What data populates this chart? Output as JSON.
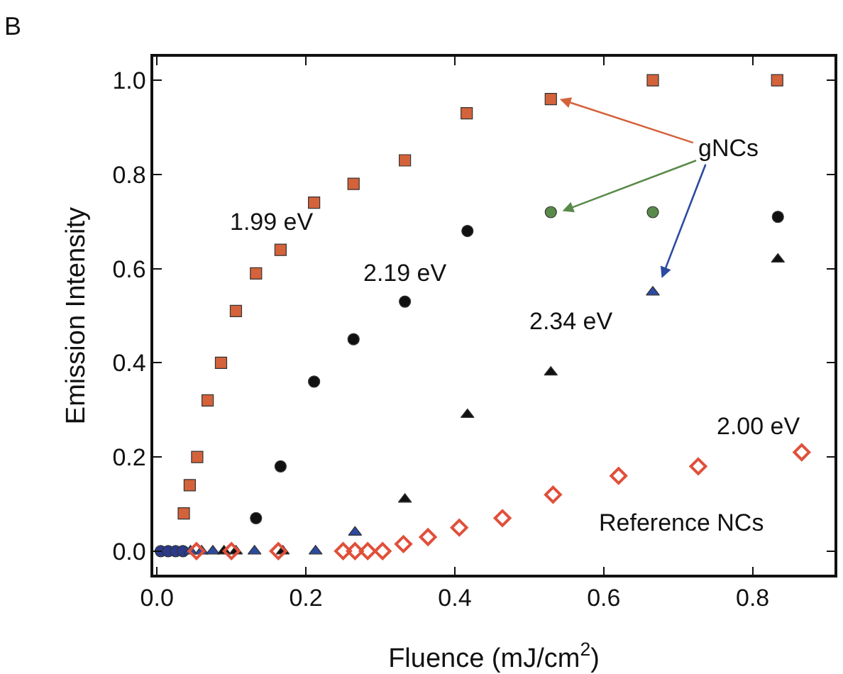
{
  "chart_data": {
    "type": "scatter",
    "title": "B",
    "xlabel": "Fluence (mJ/cm$^{2}$)",
    "ylabel": "Emission Intensity",
    "xlim": [
      -0.005,
      0.91
    ],
    "ylim": [
      -0.05,
      1.05
    ],
    "xticks": [
      {
        "value": 0,
        "label": "0.0"
      },
      {
        "value": 0.2,
        "label": "0.2"
      },
      {
        "value": 0.4,
        "label": "0.4"
      },
      {
        "value": 0.6,
        "label": "0.6"
      },
      {
        "value": 0.8,
        "label": "0.8"
      }
    ],
    "yticks": [
      {
        "value": 0,
        "label": "0.0"
      },
      {
        "value": 0.2,
        "label": "0.2"
      },
      {
        "value": 0.4,
        "label": "0.4"
      },
      {
        "value": 0.6,
        "label": "0.6"
      },
      {
        "value": 0.8,
        "label": "0.8"
      },
      {
        "value": 1,
        "label": "1.0"
      }
    ],
    "grid": false,
    "legend": false,
    "series": [
      {
        "name": "1.99 eV",
        "marker": "square",
        "color": "#d4623a",
        "x": [
          0.036,
          0.044,
          0.054,
          0.068,
          0.086,
          0.106,
          0.133,
          0.166,
          0.211,
          0.264,
          0.333,
          0.416,
          0.529,
          0.666,
          0.833
        ],
        "values": [
          0.08,
          0.14,
          0.2,
          0.32,
          0.4,
          0.51,
          0.59,
          0.64,
          0.74,
          0.78,
          0.83,
          0.93,
          0.96,
          1.0,
          1.0
        ]
      },
      {
        "name": "2.19 eV",
        "marker": "circle",
        "color": "#111111",
        "x": [
          0.005,
          0.015,
          0.025,
          0.035,
          0.133,
          0.166,
          0.211,
          0.264,
          0.333,
          0.417,
          0.529,
          0.666,
          0.834
        ],
        "values": [
          0,
          0,
          0,
          0,
          0.07,
          0.18,
          0.36,
          0.45,
          0.53,
          0.68,
          0.72,
          0.72,
          0.71
        ],
        "colors": [
          "#2b3a8a",
          "#2b3a8a",
          "#2b3a8a",
          "#2b3a8a",
          "#111111",
          "#111111",
          "#111111",
          "#111111",
          "#111111",
          "#111111",
          "#5a8a4a",
          "#5a8a4a",
          "#111111"
        ]
      },
      {
        "name": "2.34 eV",
        "marker": "triangle",
        "color": "#111111",
        "x": [
          0.045,
          0.06,
          0.075,
          0.09,
          0.106,
          0.131,
          0.169,
          0.213,
          0.266,
          0.333,
          0.417,
          0.529,
          0.666,
          0.834
        ],
        "values": [
          0,
          0,
          0,
          0,
          0,
          0,
          0,
          0,
          0.04,
          0.11,
          0.29,
          0.38,
          0.55,
          0.62
        ],
        "colors": [
          "#2b4aa0",
          "#2b4aa0",
          "#2b4aa0",
          "#111111",
          "#111111",
          "#2b4aa0",
          "#111111",
          "#2b4aa0",
          "#2b4aa0",
          "#111111",
          "#111111",
          "#111111",
          "#2b4aa0",
          "#111111"
        ]
      },
      {
        "name": "2.00 eV",
        "marker": "diamond",
        "color": "#e0503a",
        "x": [
          0.053,
          0.1,
          0.163,
          0.25,
          0.266,
          0.283,
          0.303,
          0.331,
          0.364,
          0.406,
          0.464,
          0.532,
          0.62,
          0.727,
          0.866
        ],
        "values": [
          0,
          0,
          0,
          0,
          0,
          0,
          0,
          0.015,
          0.03,
          0.05,
          0.07,
          0.12,
          0.16,
          0.18,
          0.21
        ]
      }
    ],
    "annotations": [
      "Reference NCs",
      {
        "text": "gNCs",
        "x": 0.529,
        "y": 0.72
      }
    ]
  }
}
